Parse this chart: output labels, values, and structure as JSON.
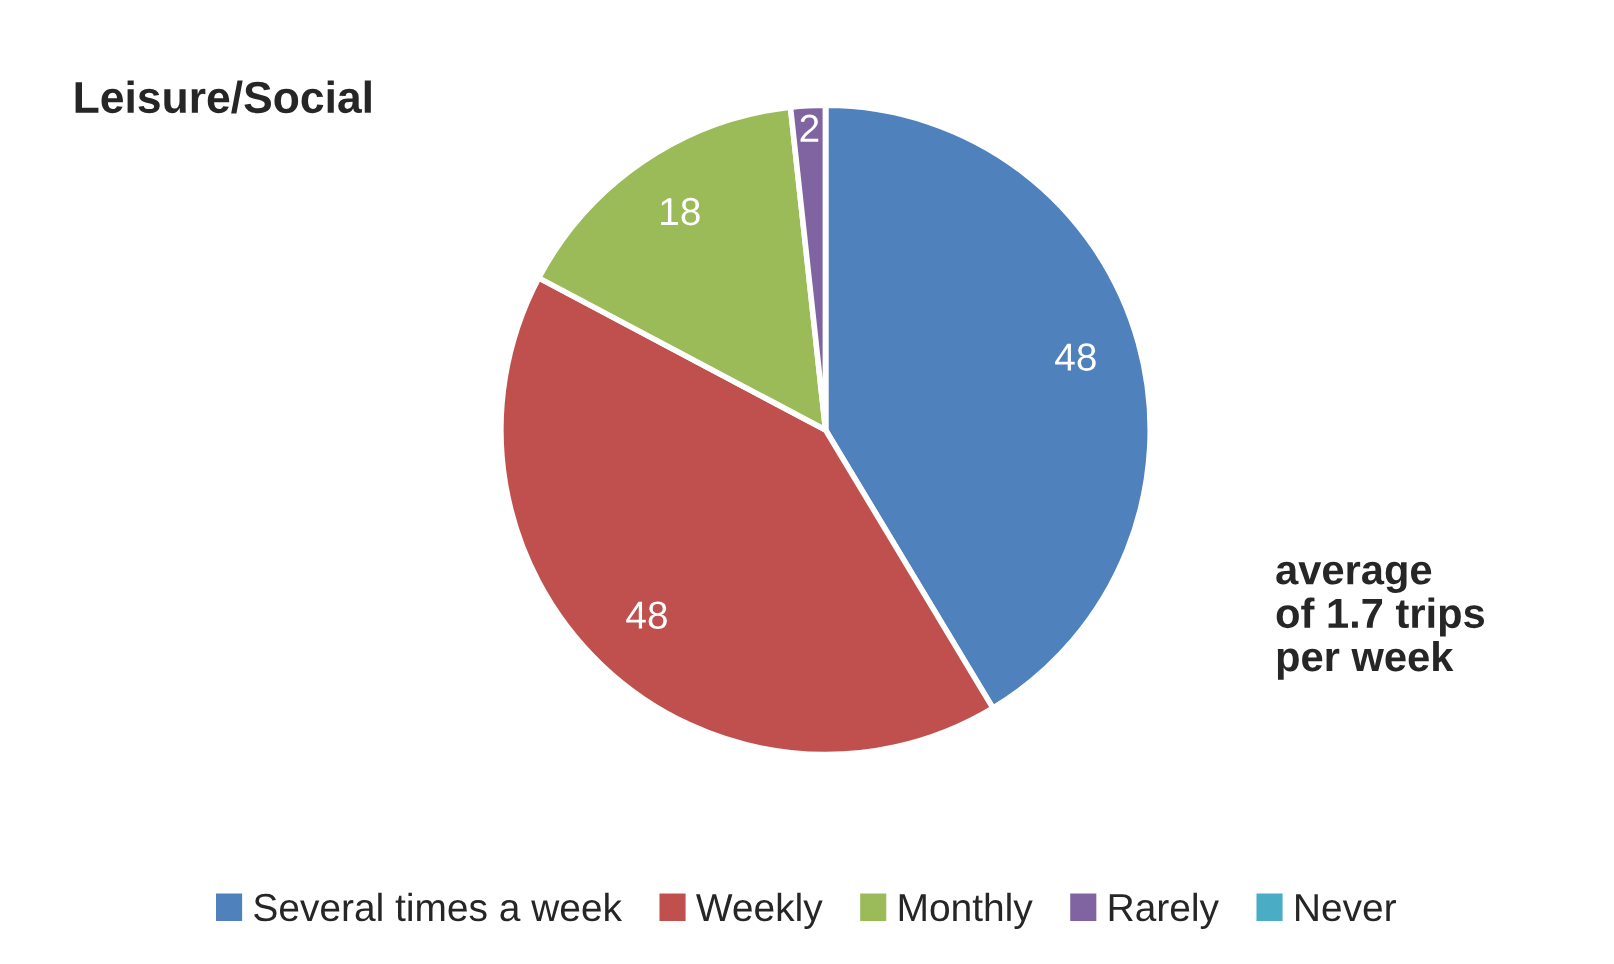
{
  "chart_data": {
    "type": "pie",
    "title": "Leisure/Social",
    "categories": [
      "Several times a week",
      "Weekly",
      "Monthly",
      "Rarely",
      "Never"
    ],
    "values": [
      48,
      48,
      18,
      2,
      0
    ],
    "colors": [
      "#4f81bd",
      "#c0504d",
      "#9bbb59",
      "#8064a2",
      "#4bacc6"
    ],
    "value_labels": [
      "48",
      "48",
      "18",
      "2",
      null
    ],
    "annotations": [
      "average\nof 1.7 trips\nper week"
    ],
    "legend": "bottom"
  }
}
